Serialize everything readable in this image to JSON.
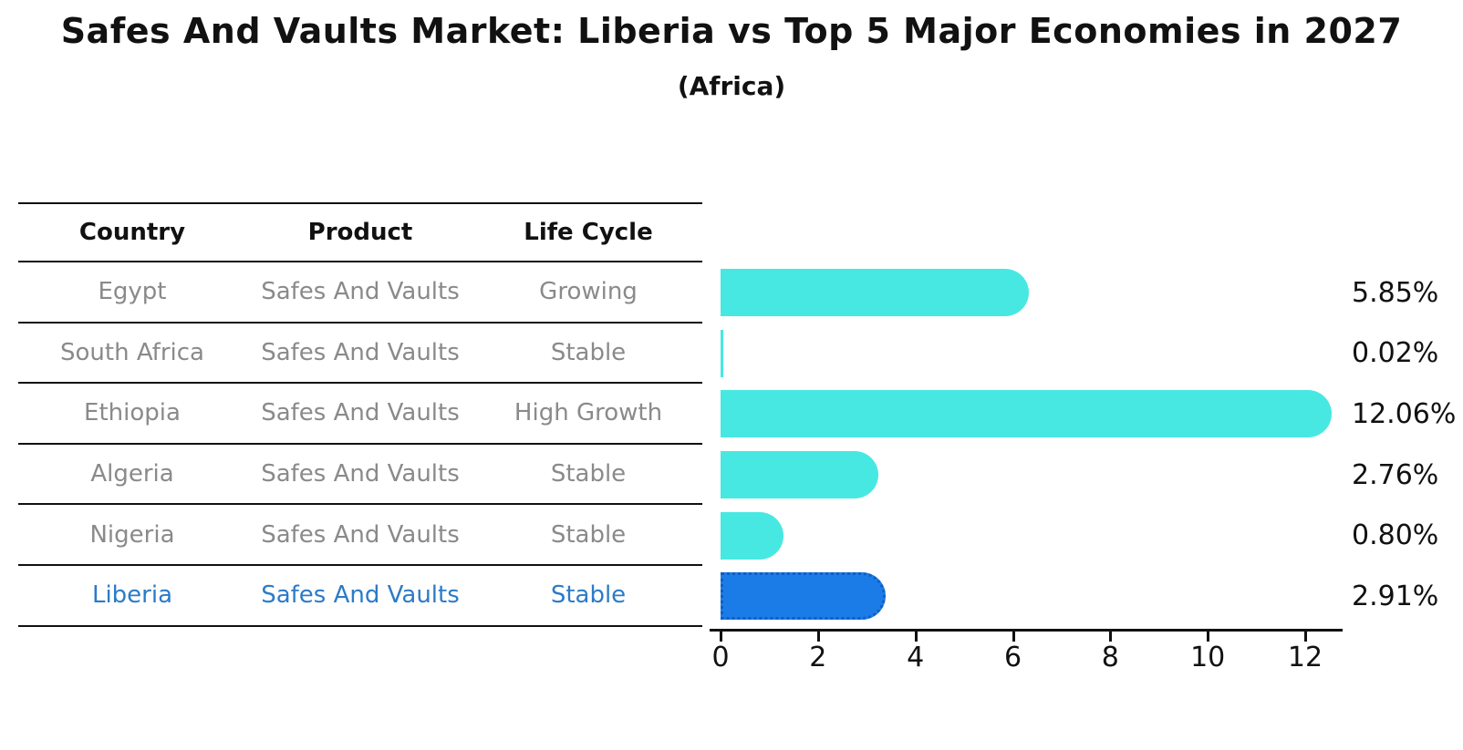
{
  "title": "Safes And Vaults Market: Liberia vs Top 5 Major Economies in 2027",
  "subtitle": "(Africa)",
  "table": {
    "headers": {
      "country": "Country",
      "product": "Product",
      "life_cycle": "Life Cycle"
    },
    "rows": [
      {
        "country": "Egypt",
        "product": "Safes And Vaults",
        "life_cycle": "Growing",
        "highlight": false
      },
      {
        "country": "South Africa",
        "product": "Safes And Vaults",
        "life_cycle": "Stable",
        "highlight": false
      },
      {
        "country": "Ethiopia",
        "product": "Safes And Vaults",
        "life_cycle": "High Growth",
        "highlight": false
      },
      {
        "country": "Algeria",
        "product": "Safes And Vaults",
        "life_cycle": "Stable",
        "highlight": false
      },
      {
        "country": "Nigeria",
        "product": "Safes And Vaults",
        "life_cycle": "Stable",
        "highlight": true
      }
    ],
    "highlight_row": {
      "country": "Liberia",
      "product": "Safes And Vaults",
      "life_cycle": "Stable"
    }
  },
  "chart_data": {
    "type": "bar",
    "orientation": "horizontal",
    "categories": [
      "Egypt",
      "South Africa",
      "Ethiopia",
      "Algeria",
      "Nigeria",
      "Liberia"
    ],
    "values": [
      5.85,
      0.02,
      12.06,
      2.76,
      0.8,
      2.91
    ],
    "labels": [
      "5.85%",
      "0.02%",
      "12.06%",
      "2.76%",
      "0.80%",
      "2.91%"
    ],
    "xlim": [
      0,
      12.73
    ],
    "xticks": [
      0,
      2,
      4,
      6,
      8,
      10,
      12
    ],
    "grid": false,
    "legend": "none",
    "bar_color": "#48E8E2",
    "highlight_index": 5,
    "highlight_color": "#1B7CE8",
    "highlight_border_color": "#0D5FC6"
  },
  "colors": {
    "background": "#FFFFFF",
    "text": "#111111",
    "table_text": "#8A8A8A",
    "highlight_text": "#2B7BC8"
  }
}
